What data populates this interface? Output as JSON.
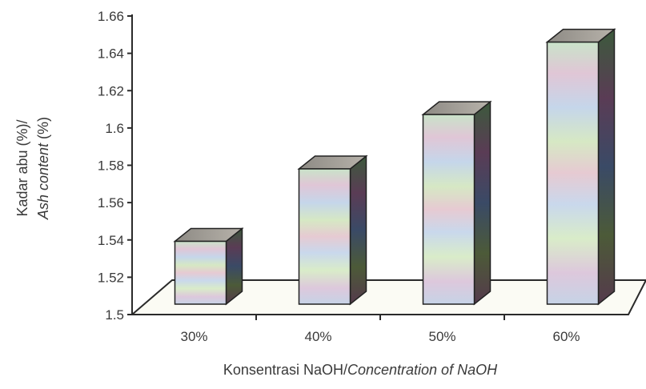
{
  "chart_data": {
    "type": "bar",
    "categories": [
      "30%",
      "40%",
      "50%",
      "60%"
    ],
    "values": [
      1.54,
      1.58,
      1.61,
      1.65
    ],
    "ylim": [
      1.5,
      1.66
    ],
    "yticks": [
      "1.5",
      "1.52",
      "1.54",
      "1.56",
      "1.58",
      "1.6",
      "1.62",
      "1.64",
      "1.66"
    ],
    "xlabel": {
      "main": "Konsentrasi NaOH/",
      "italic": "Concentration of NaOH"
    },
    "ylabel": {
      "line1": "Kadar abu (%)/",
      "line2_italic": "Ash content",
      "line2_rest": " (%)"
    },
    "grid": false,
    "style": "3d"
  }
}
